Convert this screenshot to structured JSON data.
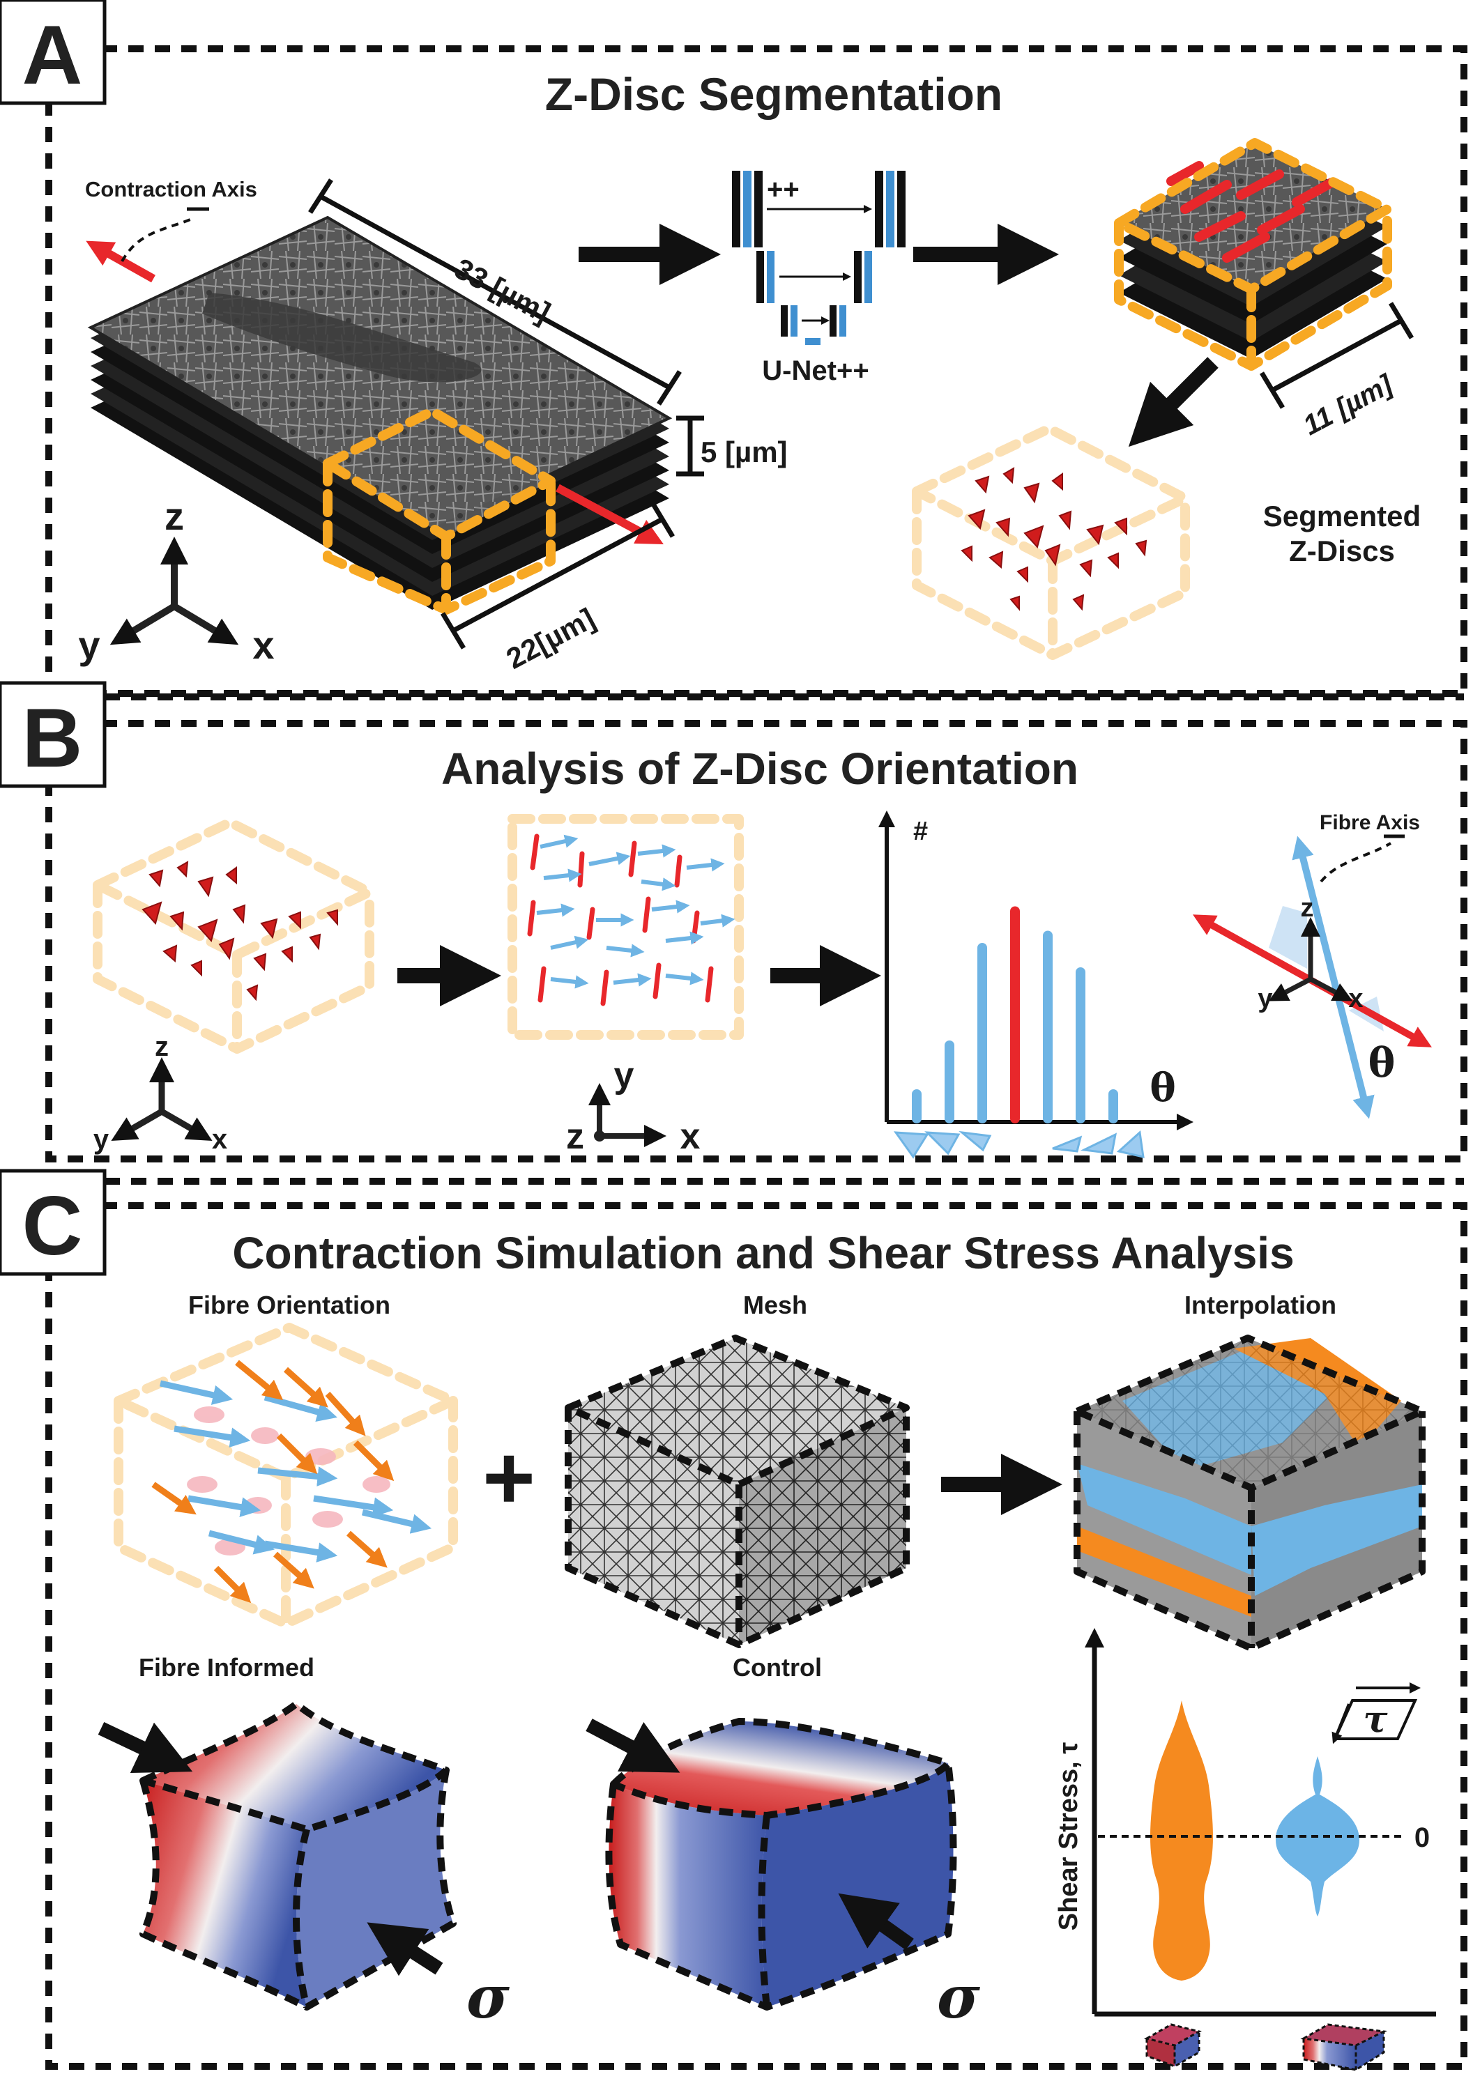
{
  "panel_a": {
    "letter": "A",
    "title": "Z-Disc Segmentation",
    "contraction_axis": "Contraction Axis",
    "dim_33": "33 [µm]",
    "dim_5": "5 [µm]",
    "dim_22": "22[µm]",
    "dim_11": "11 [µm]",
    "network": "U-Net++",
    "network_plus": "++",
    "segmented_line1": "Segmented",
    "segmented_line2": "Z-Discs",
    "axis_z": "z",
    "axis_y": "y",
    "axis_x": "x"
  },
  "panel_b": {
    "letter": "B",
    "title": "Analysis of Z-Disc Orientation",
    "axis_z": "z",
    "axis_y": "y",
    "axis_x": "x",
    "axis2_y": "y",
    "axis2_z": "z",
    "axis2_x": "x",
    "hist_y": "#",
    "hist_x": "θ",
    "fibre_axis": "Fibre Axis",
    "fa_z": "z",
    "fa_y": "y",
    "fa_x": "x",
    "fa_theta": "θ",
    "histogram": {
      "type": "bar",
      "values": [
        1,
        3,
        7,
        8.5,
        7.5,
        6,
        1
      ],
      "highlight_index": 3
    }
  },
  "panel_c": {
    "letter": "C",
    "title": "Contraction Simulation and Shear Stress Analysis",
    "fibre_orientation": "Fibre Orientation",
    "mesh": "Mesh",
    "interpolation": "Interpolation",
    "fibre_informed": "Fibre Informed",
    "control": "Control",
    "sigma1": "σ",
    "sigma2": "σ",
    "plus": "+",
    "shear_axis": "Shear Stress, τ",
    "zero": "0",
    "tau_symbol": "τ"
  },
  "colors": {
    "orange": "#f7a823",
    "light_orange": "#fbe0b4",
    "red": "#e8272b",
    "blue": "#6eb4e4",
    "violin_orange": "#f58a1f",
    "violin_blue": "#6cb4e6",
    "stress_red": "#c81e1e",
    "stress_blue": "#3d55a8"
  }
}
